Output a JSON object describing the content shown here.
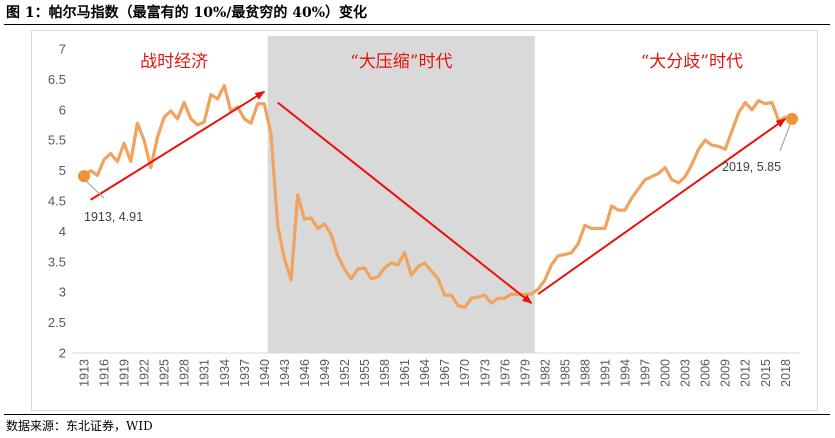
{
  "figure": {
    "title": "图 1：帕尔马指数（最富有的 10%/最贫穷的 40%）变化",
    "source": "数据来源：东北证券，WID"
  },
  "chart_data": {
    "type": "line",
    "title": "",
    "xlabel": "",
    "ylabel": "",
    "ylim": [
      2,
      7
    ],
    "yticks": [
      2,
      2.5,
      3,
      3.5,
      4,
      4.5,
      5,
      5.5,
      6,
      6.5,
      7
    ],
    "xlim": [
      1913,
      2019
    ],
    "xtick_labels": [
      "1913",
      "1916",
      "1919",
      "1922",
      "1925",
      "1928",
      "1931",
      "1934",
      "1937",
      "1940",
      "1943",
      "1946",
      "1949",
      "1952",
      "1955",
      "1958",
      "1961",
      "1964",
      "1967",
      "1970",
      "1973",
      "1976",
      "1979",
      "1982",
      "1985",
      "1988",
      "1991",
      "1994",
      "1997",
      "2000",
      "2003",
      "2006",
      "2009",
      "2012",
      "2015",
      "2018"
    ],
    "grid": false,
    "line_color": "#f0a35e",
    "shade_color": "#d9d9d9",
    "arrow_color": "#e8120c",
    "shaded_region": [
      1940.5,
      1980.5
    ],
    "series": [
      {
        "name": "",
        "x": [
          1913,
          1914,
          1915,
          1916,
          1917,
          1918,
          1919,
          1920,
          1921,
          1922,
          1923,
          1924,
          1925,
          1926,
          1927,
          1928,
          1929,
          1930,
          1931,
          1932,
          1933,
          1934,
          1935,
          1936,
          1937,
          1938,
          1939,
          1940,
          1941,
          1942,
          1943,
          1944,
          1945,
          1946,
          1947,
          1948,
          1949,
          1950,
          1951,
          1952,
          1953,
          1954,
          1955,
          1956,
          1957,
          1958,
          1959,
          1960,
          1961,
          1962,
          1963,
          1964,
          1965,
          1966,
          1967,
          1968,
          1969,
          1970,
          1971,
          1972,
          1973,
          1974,
          1975,
          1976,
          1977,
          1978,
          1979,
          1980,
          1981,
          1982,
          1983,
          1984,
          1985,
          1986,
          1987,
          1988,
          1989,
          1990,
          1991,
          1992,
          1993,
          1994,
          1995,
          1996,
          1997,
          1998,
          1999,
          2000,
          2001,
          2002,
          2003,
          2004,
          2005,
          2006,
          2007,
          2008,
          2009,
          2010,
          2011,
          2012,
          2013,
          2014,
          2015,
          2016,
          2017,
          2018,
          2019
        ],
        "values": [
          4.91,
          5.0,
          4.92,
          5.18,
          5.28,
          5.15,
          5.45,
          5.15,
          5.78,
          5.5,
          5.05,
          5.55,
          5.88,
          5.98,
          5.85,
          6.12,
          5.85,
          5.75,
          5.8,
          6.25,
          6.18,
          6.4,
          5.97,
          6.05,
          5.85,
          5.78,
          6.1,
          6.1,
          5.6,
          4.1,
          3.55,
          3.2,
          4.6,
          4.2,
          4.22,
          4.05,
          4.12,
          3.95,
          3.6,
          3.38,
          3.22,
          3.38,
          3.4,
          3.22,
          3.25,
          3.4,
          3.48,
          3.45,
          3.65,
          3.28,
          3.42,
          3.48,
          3.35,
          3.22,
          2.95,
          2.95,
          2.78,
          2.75,
          2.9,
          2.92,
          2.95,
          2.82,
          2.9,
          2.9,
          2.97,
          2.96,
          2.96,
          2.97,
          3.05,
          3.2,
          3.45,
          3.6,
          3.62,
          3.65,
          3.8,
          4.1,
          4.05,
          4.05,
          4.05,
          4.42,
          4.35,
          4.35,
          4.55,
          4.7,
          4.85,
          4.9,
          4.95,
          5.05,
          4.85,
          4.8,
          4.9,
          5.1,
          5.35,
          5.5,
          5.42,
          5.4,
          5.35,
          5.65,
          5.95,
          6.12,
          6.0,
          6.15,
          6.1,
          6.12,
          5.82,
          5.88,
          5.85
        ]
      }
    ],
    "annotations": [
      {
        "label": "1913, 4.91",
        "x": 1913,
        "y": 4.91
      },
      {
        "label": "2019, 5.85",
        "x": 2019,
        "y": 5.85
      }
    ],
    "eras": [
      {
        "label": "战时经济",
        "x_center": 1926.5
      },
      {
        "label": "“大压缩”时代",
        "x_center": 1960.5
      },
      {
        "label": "“大分歧”时代",
        "x_center": 2004
      }
    ],
    "arrows": [
      {
        "from": [
          1914,
          4.52
        ],
        "to": [
          1940,
          6.3
        ]
      },
      {
        "from": [
          1942,
          6.12
        ],
        "to": [
          1980,
          2.82
        ]
      },
      {
        "from": [
          1981,
          2.97
        ],
        "to": [
          2018,
          5.85
        ]
      }
    ]
  }
}
